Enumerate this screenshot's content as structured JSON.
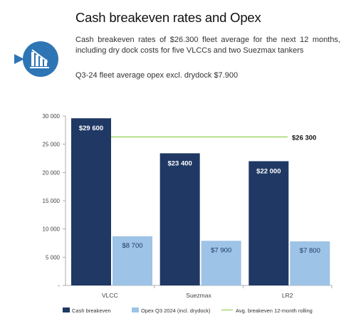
{
  "page": {
    "title": "Cash breakeven rates and Opex",
    "description": "Cash breakeven rates of $26.300 fleet average for the next 12 months, including dry dock costs for five VLCCs and two Suezmax tankers",
    "opex_note": "Q3-24 fleet average opex excl. drydock $7.900",
    "icon": "declining-bar-chart-icon"
  },
  "colors": {
    "cash_breakeven": "#1f3864",
    "opex": "#9dc3e6",
    "avg_line": "#92d050",
    "icon_circle": "#2e75b6"
  },
  "chart_data": {
    "type": "bar",
    "categories": [
      "VLCC",
      "Suezmax",
      "LR2"
    ],
    "series": [
      {
        "name": "Cash breakeven",
        "values": [
          29600,
          23400,
          22000
        ],
        "labels": [
          "$29 600",
          "$23 400",
          "$22 000"
        ]
      },
      {
        "name": "Opex  Q3 2024 (incl. drydock)",
        "values": [
          8700,
          7900,
          7800
        ],
        "labels": [
          "$8 700",
          "$7 900",
          "$7 800"
        ]
      }
    ],
    "reference_line": {
      "name": "Avg. breakeven 12-month rolling",
      "value": 26300,
      "label": "$26 300"
    },
    "ylim": [
      0,
      30000
    ],
    "yticks": [
      0,
      5000,
      10000,
      15000,
      20000,
      25000,
      30000
    ],
    "ytick_labels": [
      "-",
      "5 000",
      "10 000",
      "15 000",
      "20 000",
      "25 000",
      "30 000"
    ],
    "grid": false,
    "legend": "bottom"
  }
}
